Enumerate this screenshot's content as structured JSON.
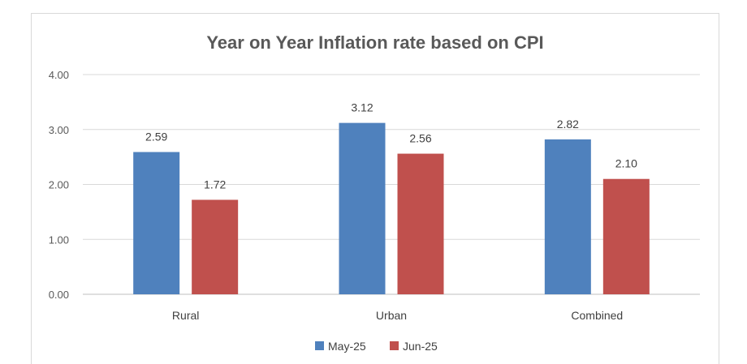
{
  "chart_data": {
    "type": "bar",
    "title": "Year on Year Inflation rate based on CPI",
    "xlabel": "",
    "ylabel": "",
    "categories": [
      "Rural",
      "Urban",
      "Combined"
    ],
    "series": [
      {
        "name": "May-25",
        "color": "#4f81bd",
        "values": [
          2.59,
          3.12,
          2.82
        ],
        "labels": [
          "2.59",
          "3.12",
          "2.82"
        ]
      },
      {
        "name": "Jun-25",
        "color": "#c0504d",
        "values": [
          1.72,
          2.56,
          2.1
        ],
        "labels": [
          "1.72",
          "2.56",
          "2.10"
        ]
      }
    ],
    "ylim": [
      0,
      4
    ],
    "yticks": [
      0,
      1,
      2,
      3,
      4
    ],
    "ytick_labels": [
      "0.00",
      "1.00",
      "2.00",
      "3.00",
      "4.00"
    ],
    "grid": true,
    "legend_position": "bottom"
  }
}
